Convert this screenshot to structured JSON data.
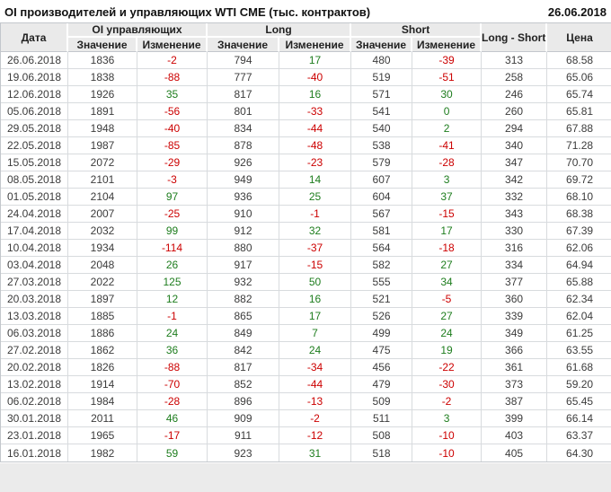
{
  "title": "OI производителей и управляющих WTI CME (тыс. контрактов)",
  "report_date": "26.06.2018",
  "colors": {
    "positive": "#1e7d1e",
    "negative": "#cc0000",
    "header_bg": "#eaeaea",
    "border": "#c3c7cc",
    "row_border": "#d8dbde",
    "text": "#3c3c3c"
  },
  "table": {
    "headers": {
      "date": "Дата",
      "oi_group": "OI управляющих",
      "long_group": "Long",
      "short_group": "Short",
      "long_short": "Long - Short",
      "price": "Цена",
      "value": "Значение",
      "change": "Изменение"
    },
    "rows": [
      {
        "date": "26.06.2018",
        "oi": "1836",
        "oi_chg": "-2",
        "long": "794",
        "long_chg": "17",
        "short": "480",
        "short_chg": "-39",
        "ls": "313",
        "price": "68.58"
      },
      {
        "date": "19.06.2018",
        "oi": "1838",
        "oi_chg": "-88",
        "long": "777",
        "long_chg": "-40",
        "short": "519",
        "short_chg": "-51",
        "ls": "258",
        "price": "65.06"
      },
      {
        "date": "12.06.2018",
        "oi": "1926",
        "oi_chg": "35",
        "long": "817",
        "long_chg": "16",
        "short": "571",
        "short_chg": "30",
        "ls": "246",
        "price": "65.74"
      },
      {
        "date": "05.06.2018",
        "oi": "1891",
        "oi_chg": "-56",
        "long": "801",
        "long_chg": "-33",
        "short": "541",
        "short_chg": "0",
        "ls": "260",
        "price": "65.81"
      },
      {
        "date": "29.05.2018",
        "oi": "1948",
        "oi_chg": "-40",
        "long": "834",
        "long_chg": "-44",
        "short": "540",
        "short_chg": "2",
        "ls": "294",
        "price": "67.88"
      },
      {
        "date": "22.05.2018",
        "oi": "1987",
        "oi_chg": "-85",
        "long": "878",
        "long_chg": "-48",
        "short": "538",
        "short_chg": "-41",
        "ls": "340",
        "price": "71.28"
      },
      {
        "date": "15.05.2018",
        "oi": "2072",
        "oi_chg": "-29",
        "long": "926",
        "long_chg": "-23",
        "short": "579",
        "short_chg": "-28",
        "ls": "347",
        "price": "70.70"
      },
      {
        "date": "08.05.2018",
        "oi": "2101",
        "oi_chg": "-3",
        "long": "949",
        "long_chg": "14",
        "short": "607",
        "short_chg": "3",
        "ls": "342",
        "price": "69.72"
      },
      {
        "date": "01.05.2018",
        "oi": "2104",
        "oi_chg": "97",
        "long": "936",
        "long_chg": "25",
        "short": "604",
        "short_chg": "37",
        "ls": "332",
        "price": "68.10"
      },
      {
        "date": "24.04.2018",
        "oi": "2007",
        "oi_chg": "-25",
        "long": "910",
        "long_chg": "-1",
        "short": "567",
        "short_chg": "-15",
        "ls": "343",
        "price": "68.38"
      },
      {
        "date": "17.04.2018",
        "oi": "2032",
        "oi_chg": "99",
        "long": "912",
        "long_chg": "32",
        "short": "581",
        "short_chg": "17",
        "ls": "330",
        "price": "67.39"
      },
      {
        "date": "10.04.2018",
        "oi": "1934",
        "oi_chg": "-114",
        "long": "880",
        "long_chg": "-37",
        "short": "564",
        "short_chg": "-18",
        "ls": "316",
        "price": "62.06"
      },
      {
        "date": "03.04.2018",
        "oi": "2048",
        "oi_chg": "26",
        "long": "917",
        "long_chg": "-15",
        "short": "582",
        "short_chg": "27",
        "ls": "334",
        "price": "64.94"
      },
      {
        "date": "27.03.2018",
        "oi": "2022",
        "oi_chg": "125",
        "long": "932",
        "long_chg": "50",
        "short": "555",
        "short_chg": "34",
        "ls": "377",
        "price": "65.88"
      },
      {
        "date": "20.03.2018",
        "oi": "1897",
        "oi_chg": "12",
        "long": "882",
        "long_chg": "16",
        "short": "521",
        "short_chg": "-5",
        "ls": "360",
        "price": "62.34"
      },
      {
        "date": "13.03.2018",
        "oi": "1885",
        "oi_chg": "-1",
        "long": "865",
        "long_chg": "17",
        "short": "526",
        "short_chg": "27",
        "ls": "339",
        "price": "62.04"
      },
      {
        "date": "06.03.2018",
        "oi": "1886",
        "oi_chg": "24",
        "long": "849",
        "long_chg": "7",
        "short": "499",
        "short_chg": "24",
        "ls": "349",
        "price": "61.25"
      },
      {
        "date": "27.02.2018",
        "oi": "1862",
        "oi_chg": "36",
        "long": "842",
        "long_chg": "24",
        "short": "475",
        "short_chg": "19",
        "ls": "366",
        "price": "63.55"
      },
      {
        "date": "20.02.2018",
        "oi": "1826",
        "oi_chg": "-88",
        "long": "817",
        "long_chg": "-34",
        "short": "456",
        "short_chg": "-22",
        "ls": "361",
        "price": "61.68"
      },
      {
        "date": "13.02.2018",
        "oi": "1914",
        "oi_chg": "-70",
        "long": "852",
        "long_chg": "-44",
        "short": "479",
        "short_chg": "-30",
        "ls": "373",
        "price": "59.20"
      },
      {
        "date": "06.02.2018",
        "oi": "1984",
        "oi_chg": "-28",
        "long": "896",
        "long_chg": "-13",
        "short": "509",
        "short_chg": "-2",
        "ls": "387",
        "price": "65.45"
      },
      {
        "date": "30.01.2018",
        "oi": "2011",
        "oi_chg": "46",
        "long": "909",
        "long_chg": "-2",
        "short": "511",
        "short_chg": "3",
        "ls": "399",
        "price": "66.14"
      },
      {
        "date": "23.01.2018",
        "oi": "1965",
        "oi_chg": "-17",
        "long": "911",
        "long_chg": "-12",
        "short": "508",
        "short_chg": "-10",
        "ls": "403",
        "price": "63.37"
      },
      {
        "date": "16.01.2018",
        "oi": "1982",
        "oi_chg": "59",
        "long": "923",
        "long_chg": "31",
        "short": "518",
        "short_chg": "-10",
        "ls": "405",
        "price": "64.30"
      }
    ]
  }
}
